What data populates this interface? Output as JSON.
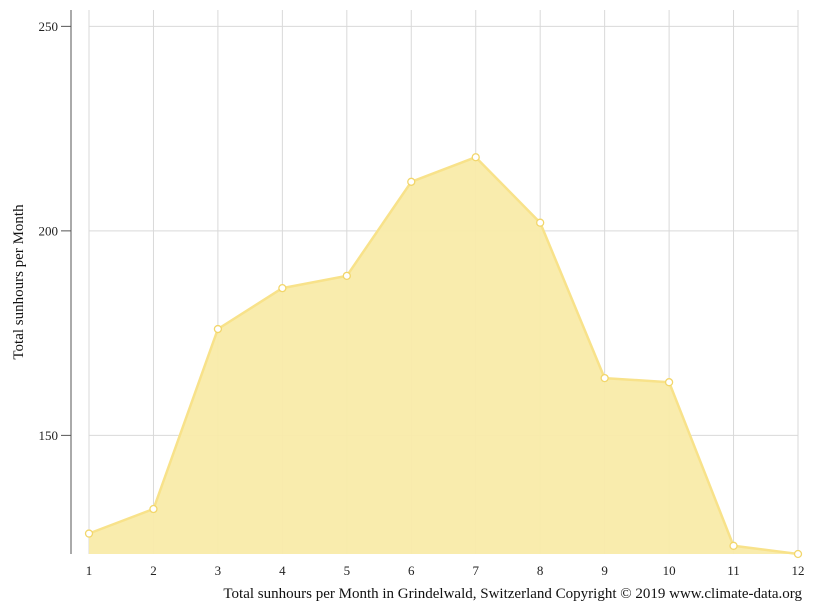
{
  "chart_data": {
    "type": "area",
    "x": [
      1,
      2,
      3,
      4,
      5,
      6,
      7,
      8,
      9,
      10,
      11,
      12
    ],
    "values": [
      126,
      132,
      176,
      186,
      189,
      212,
      218,
      202,
      164,
      163,
      123,
      121
    ],
    "ylabel": "Total sunhours per Month",
    "xlabel": "",
    "caption": "Total sunhours per Month in Grindelwald, Switzerland Copyright © 2019 www.climate-data.org",
    "ylim": [
      121,
      254
    ],
    "xlim": [
      1,
      12
    ],
    "yticks": [
      150,
      200,
      250
    ],
    "grid": true,
    "colors": {
      "fill": "#f9eba9",
      "line": "#f8e28a",
      "marker_stroke": "#f2d66b",
      "marker_fill": "#ffffff",
      "grid": "#d9d9d9",
      "axis": "#555555"
    }
  }
}
